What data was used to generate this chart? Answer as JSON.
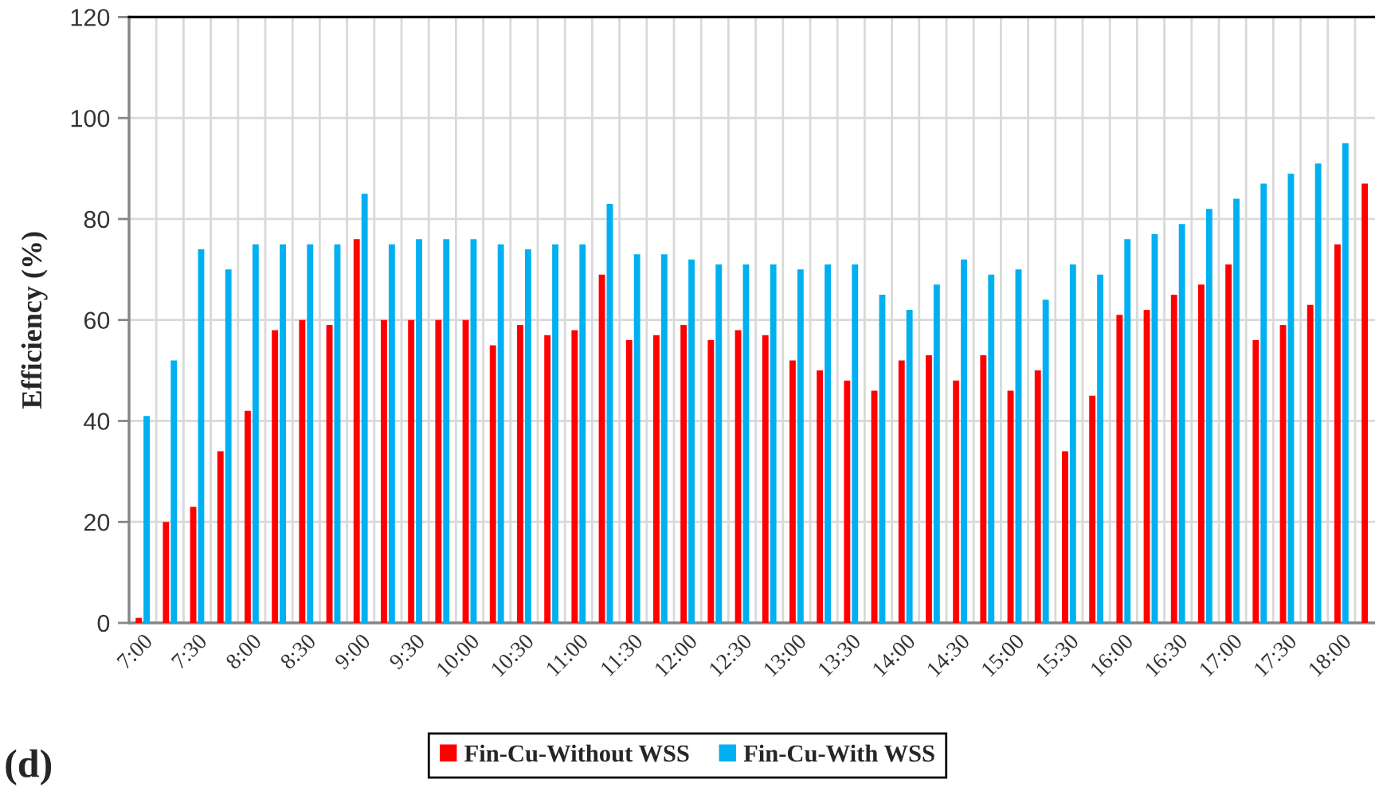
{
  "chart_data": {
    "type": "bar",
    "ylabel": "Efficiency (%)",
    "annotations": [
      "(d)"
    ],
    "categories": [
      "7:00",
      null,
      "7:30",
      null,
      "8:00",
      null,
      "8:30",
      null,
      "9:00",
      null,
      "9:30",
      null,
      "10:00",
      null,
      "10:30",
      null,
      "11:00",
      null,
      "11:30",
      null,
      "12:00",
      null,
      "12:30",
      null,
      "13:00",
      null,
      "13:30",
      null,
      "14:00",
      null,
      "14:30",
      null,
      "15:00",
      null,
      "15:30",
      null,
      "16:00",
      null,
      "16:30",
      null,
      "17:00",
      null,
      "17:30",
      null,
      "18:00",
      null
    ],
    "series": [
      {
        "name": "Fin-Cu-Without WSS",
        "color": "#ff0000",
        "values": [
          1,
          20,
          23,
          34,
          42,
          58,
          60,
          59,
          76,
          60,
          60,
          60,
          60,
          55,
          59,
          57,
          58,
          69,
          56,
          57,
          59,
          56,
          58,
          57,
          52,
          50,
          48,
          46,
          52,
          53,
          48,
          53,
          46,
          50,
          34,
          45,
          61,
          62,
          65,
          67,
          71,
          56,
          59,
          63,
          75,
          87
        ]
      },
      {
        "name": "Fin-Cu-With WSS",
        "color": "#00b0f0",
        "values": [
          41,
          52,
          74,
          70,
          75,
          75,
          75,
          75,
          85,
          75,
          76,
          76,
          76,
          75,
          74,
          75,
          75,
          83,
          73,
          73,
          72,
          71,
          71,
          71,
          70,
          71,
          71,
          65,
          62,
          67,
          72,
          69,
          70,
          64,
          71,
          69,
          76,
          77,
          79,
          82,
          84,
          87,
          89,
          91,
          95,
          null
        ]
      }
    ],
    "ylim": [
      0,
      120
    ],
    "yticks": [
      0,
      20,
      40,
      60,
      80,
      100,
      120
    ],
    "grid": true,
    "legend": "bottom"
  }
}
